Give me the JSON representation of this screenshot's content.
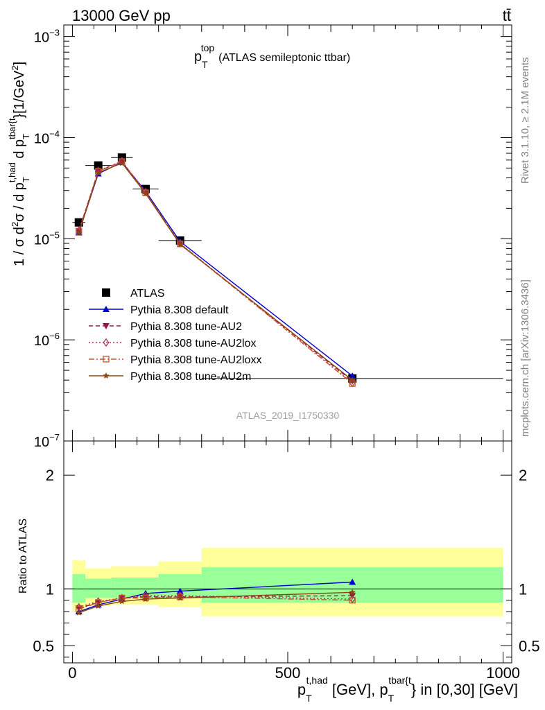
{
  "header": {
    "left": "13000 GeV pp",
    "right": "tt̄"
  },
  "side_labels": {
    "rivet": "Rivet 3.1.10, ≥ 2.1M events",
    "mcplots": "mcplots.cern.ch [arXiv:1306.3436]"
  },
  "chart_data": [
    {
      "type": "line",
      "title_main": "p",
      "title_sub": "T",
      "title_sup": "top",
      "title_rest": "(ATLAS semileptonic ttbar)",
      "watermark": "ATLAS_2019_I1750330",
      "ylabel": "1 / σ d²σ / d p_T^{t,had} d p_T^{tbar{t}} [1/GeV²]",
      "ylabel_parts": {
        "a": "1 / σ d",
        "a_sup": "2",
        "b": "σ / d p",
        "b_sub": "T",
        "b_sup": "t,had",
        "c": " d p",
        "c_sub": "T",
        "c_sup": "tbar{t",
        "d": "}[1/GeV",
        "d_sup": "2",
        "e": "]"
      },
      "yscale": "log",
      "ylim": [
        1e-07,
        0.0013
      ],
      "xlim": [
        -20,
        1020
      ],
      "ytick_labels": [
        {
          "base": "10",
          "exp": "−7",
          "value": 1e-07
        },
        {
          "base": "10",
          "exp": "−6",
          "value": 1e-06
        },
        {
          "base": "10",
          "exp": "−5",
          "value": 1e-05
        },
        {
          "base": "10",
          "exp": "−4",
          "value": 0.0001
        },
        {
          "base": "10",
          "exp": "−3",
          "value": 0.001
        }
      ],
      "x": [
        15,
        60,
        115,
        170,
        250,
        650
      ],
      "bins": [
        [
          0,
          30
        ],
        [
          30,
          90
        ],
        [
          90,
          140
        ],
        [
          140,
          200
        ],
        [
          200,
          300
        ],
        [
          300,
          1000
        ]
      ],
      "series": [
        {
          "name": "ATLAS",
          "marker": "square",
          "color": "#000000",
          "dash": "none",
          "values": [
            1.45e-05,
            5.3e-05,
            6.35e-05,
            3.1e-05,
            9.6e-06,
            4.15e-07
          ]
        },
        {
          "name": "Pythia 8.308 default",
          "marker": "triangle-up",
          "color": "#0000cc",
          "dash": "none",
          "values": [
            1.15e-05,
            4.4e-05,
            5.7e-05,
            2.95e-05,
            9.4e-06,
            4.4e-07
          ]
        },
        {
          "name": "Pythia 8.308 tune-AU2",
          "marker": "triangle-down",
          "color": "#8b1a4a",
          "dash": "6,4",
          "values": [
            1.2e-05,
            4.65e-05,
            5.8e-05,
            2.85e-05,
            8.9e-06,
            3.9e-07
          ]
        },
        {
          "name": "Pythia 8.308 tune-AU2lox",
          "marker": "diamond-open",
          "color": "#b03050",
          "dash": "2,3",
          "values": [
            1.2e-05,
            4.7e-05,
            5.85e-05,
            2.9e-05,
            9e-06,
            3.75e-07
          ]
        },
        {
          "name": "Pythia 8.308 tune-AU2loxx",
          "marker": "square-open",
          "color": "#c8552a",
          "dash": "8,3,2,3",
          "values": [
            1.18e-05,
            4.65e-05,
            5.8e-05,
            2.85e-05,
            8.9e-06,
            3.7e-07
          ]
        },
        {
          "name": "Pythia 8.308 tune-AU2m",
          "marker": "star",
          "color": "#8b4513",
          "dash": "none",
          "values": [
            1.14e-05,
            4.5e-05,
            5.6e-05,
            2.8e-05,
            8.8e-06,
            4e-07
          ]
        }
      ]
    },
    {
      "type": "line",
      "ylabel": "Ratio to ATLAS",
      "xlabel_parts": {
        "a": "p",
        "a_sub": "T",
        "a_sup": "t,had",
        "b": " [GeV], p",
        "b_sub": "T",
        "b_sup": "tbar{t",
        "c": "} in [0,30] [GeV]"
      },
      "ylim": [
        0.35,
        2.3
      ],
      "xlim": [
        -20,
        1020
      ],
      "ytick_labels": [
        "0.5",
        "1",
        "2"
      ],
      "ytick_values": [
        0.5,
        1,
        2
      ],
      "xtick_labels": [
        "0",
        "500",
        "1000"
      ],
      "xtick_values": [
        0,
        500,
        1000
      ],
      "x": [
        15,
        60,
        115,
        170,
        250,
        650
      ],
      "bands": [
        {
          "x0": 0,
          "x1": 30,
          "yellow": [
            0.8,
            1.25
          ],
          "green": [
            0.88,
            1.13
          ]
        },
        {
          "x0": 30,
          "x1": 90,
          "yellow": [
            0.85,
            1.18
          ],
          "green": [
            0.92,
            1.09
          ]
        },
        {
          "x0": 90,
          "x1": 200,
          "yellow": [
            0.86,
            1.2
          ],
          "green": [
            0.92,
            1.1
          ]
        },
        {
          "x0": 200,
          "x1": 300,
          "yellow": [
            0.84,
            1.24
          ],
          "green": [
            0.92,
            1.13
          ]
        },
        {
          "x0": 300,
          "x1": 1000,
          "yellow": [
            0.76,
            1.36
          ],
          "green": [
            0.88,
            1.19
          ]
        }
      ],
      "series": [
        {
          "name": "Pythia 8.308 default",
          "values": [
            0.8,
            0.86,
            0.91,
            0.96,
            0.98,
            1.06
          ]
        },
        {
          "name": "Pythia 8.308 tune-AU2",
          "values": [
            0.83,
            0.88,
            0.92,
            0.93,
            0.93,
            0.94
          ]
        },
        {
          "name": "Pythia 8.308 tune-AU2lox",
          "values": [
            0.84,
            0.89,
            0.92,
            0.94,
            0.94,
            0.91
          ]
        },
        {
          "name": "Pythia 8.308 tune-AU2loxx",
          "values": [
            0.82,
            0.88,
            0.92,
            0.92,
            0.93,
            0.9
          ]
        },
        {
          "name": "Pythia 8.308 tune-AU2m",
          "values": [
            0.79,
            0.85,
            0.89,
            0.91,
            0.92,
            0.97
          ]
        }
      ]
    }
  ]
}
